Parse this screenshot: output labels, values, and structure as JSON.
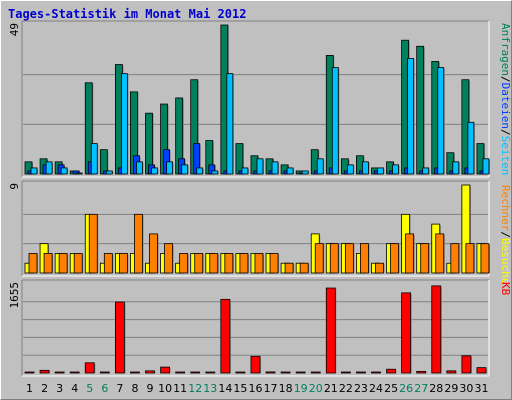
{
  "title": "Tages-Statistik im Monat Mai 2012",
  "colors": {
    "anfragen": "#00805c",
    "dateien": "#00c0ff",
    "seiten": "#0040ff",
    "besuche": "#ffff00",
    "rechner": "#ff8000",
    "kb": "#ff0000",
    "weekend_label": "#00805c",
    "axis_label": "#000000"
  },
  "chart_data": [
    {
      "type": "bar",
      "panel": "top",
      "ymax_label": "49",
      "ylim": [
        0,
        49
      ],
      "right_labels": [
        {
          "text": "Anfragen",
          "color": "#00805c"
        },
        {
          "text": "/",
          "color": "#000000"
        },
        {
          "text": "Dateien",
          "color": "#0040ff"
        },
        {
          "text": "/",
          "color": "#000000"
        },
        {
          "text": "Seiten",
          "color": "#00c0ff"
        }
      ],
      "categories": [
        "1",
        "2",
        "3",
        "4",
        "5",
        "6",
        "7",
        "8",
        "9",
        "10",
        "11",
        "12",
        "13",
        "14",
        "15",
        "16",
        "17",
        "18",
        "19",
        "20",
        "21",
        "22",
        "23",
        "24",
        "25",
        "26",
        "27",
        "28",
        "29",
        "30",
        "31"
      ],
      "series": [
        {
          "name": "Anfragen",
          "values": [
            4,
            5,
            4,
            1,
            30,
            8,
            36,
            27,
            20,
            23,
            25,
            31,
            11,
            49,
            10,
            6,
            5,
            3,
            1,
            8,
            39,
            5,
            6,
            2,
            4,
            44,
            42,
            37,
            7,
            31,
            10
          ]
        },
        {
          "name": "Dateien",
          "values": [
            1,
            3,
            3,
            1,
            4,
            1,
            2,
            6,
            3,
            8,
            5,
            10,
            3,
            1,
            1,
            1,
            1,
            1,
            0,
            1,
            2,
            1,
            1,
            1,
            1,
            2,
            1,
            2,
            1,
            2,
            1
          ]
        },
        {
          "name": "Seiten",
          "values": [
            2,
            4,
            2,
            0,
            10,
            1,
            33,
            4,
            2,
            4,
            3,
            2,
            1,
            33,
            2,
            5,
            4,
            2,
            1,
            5,
            35,
            3,
            4,
            2,
            3,
            38,
            2,
            35,
            4,
            17,
            5
          ]
        }
      ]
    },
    {
      "type": "bar",
      "panel": "middle",
      "ymax_label": "9",
      "ylim": [
        0,
        9
      ],
      "right_labels": [
        {
          "text": "Rechner",
          "color": "#ff8000"
        },
        {
          "text": "/",
          "color": "#000000"
        },
        {
          "text": "Besuche",
          "color": "#ffff00"
        }
      ],
      "categories": [
        "1",
        "2",
        "3",
        "4",
        "5",
        "6",
        "7",
        "8",
        "9",
        "10",
        "11",
        "12",
        "13",
        "14",
        "15",
        "16",
        "17",
        "18",
        "19",
        "20",
        "21",
        "22",
        "23",
        "24",
        "25",
        "26",
        "27",
        "28",
        "29",
        "30",
        "31"
      ],
      "series": [
        {
          "name": "Besuche",
          "values": [
            1,
            3,
            2,
            2,
            6,
            1,
            2,
            2,
            1,
            2,
            1,
            2,
            2,
            2,
            2,
            2,
            2,
            1,
            1,
            4,
            3,
            3,
            2,
            1,
            3,
            6,
            3,
            5,
            1,
            9,
            3
          ]
        },
        {
          "name": "Rechner",
          "values": [
            2,
            2,
            2,
            2,
            6,
            2,
            2,
            6,
            4,
            3,
            2,
            2,
            2,
            2,
            2,
            2,
            2,
            1,
            1,
            3,
            3,
            3,
            3,
            1,
            3,
            4,
            3,
            4,
            3,
            3,
            3
          ]
        }
      ]
    },
    {
      "type": "bar",
      "panel": "bottom",
      "ymax_label": "1655",
      "ylim": [
        0,
        1655
      ],
      "right_labels": [
        {
          "text": "KB",
          "color": "#ff0000"
        }
      ],
      "categories": [
        "1",
        "2",
        "3",
        "4",
        "5",
        "6",
        "7",
        "8",
        "9",
        "10",
        "11",
        "12",
        "13",
        "14",
        "15",
        "16",
        "17",
        "18",
        "19",
        "20",
        "21",
        "22",
        "23",
        "24",
        "25",
        "26",
        "27",
        "28",
        "29",
        "30",
        "31"
      ],
      "series": [
        {
          "name": "KB",
          "values": [
            10,
            50,
            10,
            10,
            190,
            10,
            1320,
            10,
            40,
            110,
            10,
            10,
            10,
            1370,
            10,
            310,
            20,
            10,
            10,
            10,
            1580,
            10,
            10,
            10,
            70,
            1490,
            30,
            1620,
            40,
            320,
            100
          ]
        }
      ]
    }
  ],
  "x_labels": [
    {
      "text": "1",
      "weekend": false
    },
    {
      "text": "2",
      "weekend": false
    },
    {
      "text": "3",
      "weekend": false
    },
    {
      "text": "4",
      "weekend": false
    },
    {
      "text": "5",
      "weekend": true
    },
    {
      "text": "6",
      "weekend": true
    },
    {
      "text": "7",
      "weekend": false
    },
    {
      "text": "8",
      "weekend": false
    },
    {
      "text": "9",
      "weekend": false
    },
    {
      "text": "10",
      "weekend": false
    },
    {
      "text": "11",
      "weekend": false
    },
    {
      "text": "12",
      "weekend": true
    },
    {
      "text": "13",
      "weekend": true
    },
    {
      "text": "14",
      "weekend": false
    },
    {
      "text": "15",
      "weekend": false
    },
    {
      "text": "16",
      "weekend": false
    },
    {
      "text": "17",
      "weekend": false
    },
    {
      "text": "18",
      "weekend": false
    },
    {
      "text": "19",
      "weekend": true
    },
    {
      "text": "20",
      "weekend": true
    },
    {
      "text": "21",
      "weekend": false
    },
    {
      "text": "22",
      "weekend": false
    },
    {
      "text": "23",
      "weekend": false
    },
    {
      "text": "24",
      "weekend": false
    },
    {
      "text": "25",
      "weekend": false
    },
    {
      "text": "26",
      "weekend": true
    },
    {
      "text": "27",
      "weekend": true
    },
    {
      "text": "28",
      "weekend": false
    },
    {
      "text": "29",
      "weekend": false
    },
    {
      "text": "30",
      "weekend": false
    },
    {
      "text": "31",
      "weekend": false
    }
  ]
}
